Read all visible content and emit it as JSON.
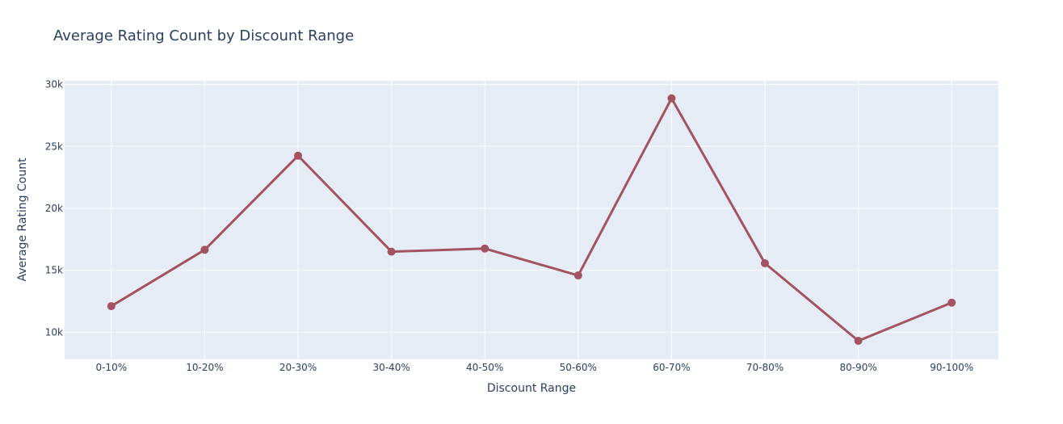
{
  "chart_data": {
    "type": "line",
    "title": "Average Rating Count by Discount Range",
    "xlabel": "Discount Range",
    "ylabel": "Average Rating Count",
    "categories": [
      "0-10%",
      "10-20%",
      "20-30%",
      "30-40%",
      "40-50%",
      "50-60%",
      "60-70%",
      "70-80%",
      "80-90%",
      "90-100%"
    ],
    "values": [
      12100,
      16650,
      24250,
      16500,
      16750,
      14580,
      28880,
      15560,
      9300,
      12380
    ],
    "ylim": [
      7800,
      30300
    ],
    "yticks": [
      10000,
      15000,
      20000,
      25000,
      30000
    ],
    "ytick_labels": [
      "10k",
      "15k",
      "20k",
      "25k",
      "30k"
    ],
    "grid": true,
    "colors": {
      "line": "#a3535f",
      "plot_bg": "#e5ecf6",
      "grid": "#ffffff",
      "text": "#2a3f5f"
    }
  }
}
